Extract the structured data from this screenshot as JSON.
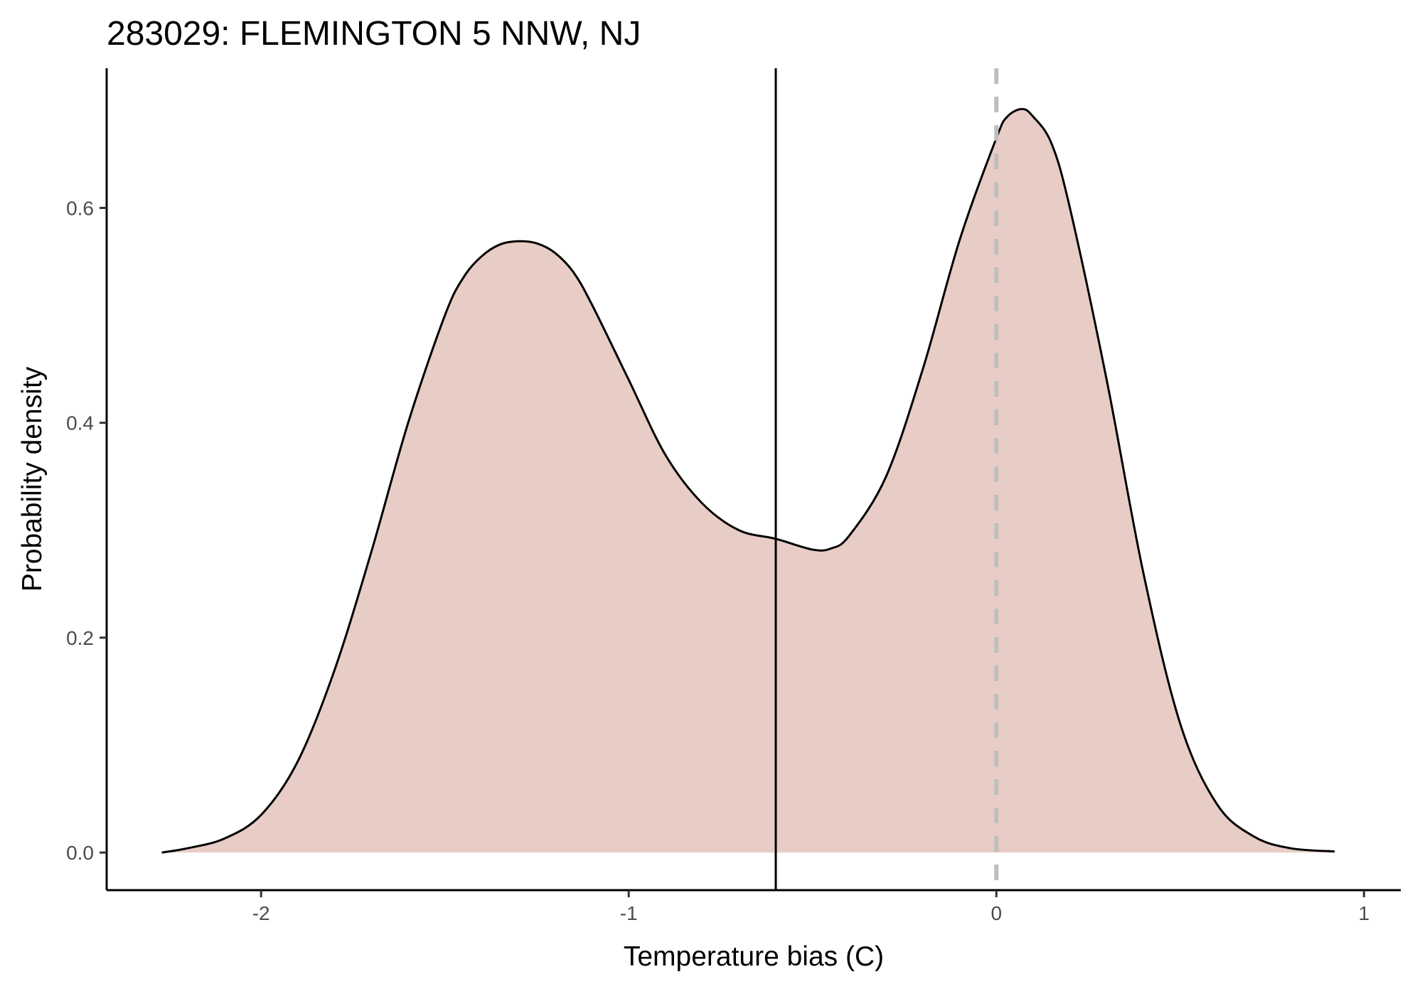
{
  "chart_data": {
    "type": "area",
    "title": "283029: FLEMINGTON 5 NNW, NJ",
    "xlabel": "Temperature bias (C)",
    "ylabel": "Probability density",
    "xlim": [
      -2.42,
      1.1
    ],
    "ylim": [
      -0.035,
      0.73
    ],
    "x_ticks": [
      -2,
      -1,
      0,
      1
    ],
    "x_tick_labels": [
      "-2",
      "-1",
      "0",
      "1"
    ],
    "y_ticks": [
      0.0,
      0.2,
      0.4,
      0.6
    ],
    "y_tick_labels": [
      "0.0",
      "0.2",
      "0.4",
      "0.6"
    ],
    "grid": false,
    "legend": "none",
    "series": [
      {
        "x": [
          -2.27,
          -2.2,
          -2.1,
          -2.0,
          -1.9,
          -1.8,
          -1.7,
          -1.6,
          -1.5,
          -1.45,
          -1.4,
          -1.35,
          -1.3,
          -1.25,
          -1.2,
          -1.15,
          -1.1,
          -1.0,
          -0.9,
          -0.8,
          -0.7,
          -0.6,
          -0.5,
          -0.45,
          -0.4,
          -0.3,
          -0.2,
          -0.1,
          0.0,
          0.03,
          0.07,
          0.1,
          0.15,
          0.2,
          0.3,
          0.4,
          0.5,
          0.6,
          0.7,
          0.8,
          0.92
        ],
        "y": [
          0.0,
          0.004,
          0.013,
          0.035,
          0.085,
          0.17,
          0.28,
          0.4,
          0.5,
          0.535,
          0.555,
          0.566,
          0.569,
          0.567,
          0.558,
          0.54,
          0.51,
          0.44,
          0.37,
          0.325,
          0.3,
          0.292,
          0.282,
          0.283,
          0.295,
          0.35,
          0.45,
          0.57,
          0.665,
          0.685,
          0.692,
          0.685,
          0.66,
          0.6,
          0.44,
          0.26,
          0.12,
          0.045,
          0.015,
          0.004,
          0.001
        ]
      }
    ],
    "vlines": [
      {
        "x": -0.6,
        "style": "solid",
        "color": "#000000"
      },
      {
        "x": 0.0,
        "style": "dashed",
        "color": "#bebebe"
      }
    ],
    "colors": {
      "fill": "#e8cdc6",
      "line": "#000000",
      "axis": "#000000",
      "tick_label": "#4d4d4d"
    }
  }
}
